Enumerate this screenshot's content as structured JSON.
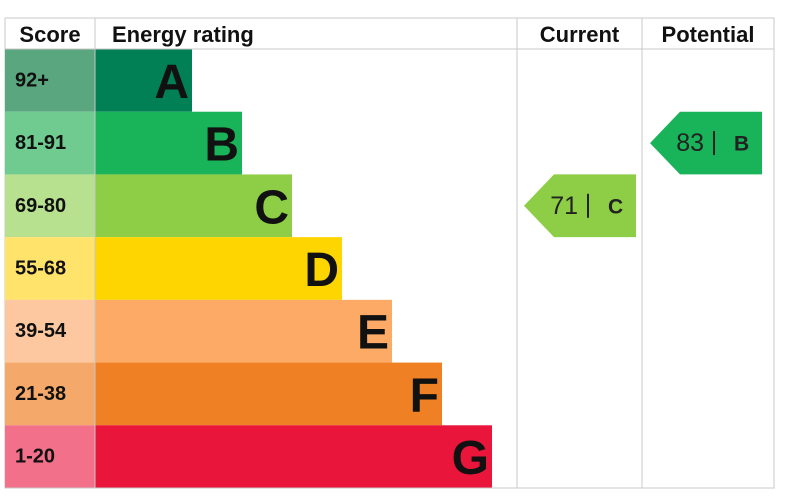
{
  "headers": [
    "Score",
    "Energy rating",
    "Current",
    "Potential"
  ],
  "rows": [
    {
      "score": "92+",
      "rating": "A",
      "color": "#008054",
      "score_color": "#5aa67f"
    },
    {
      "score": "81-91",
      "rating": "B",
      "color": "#19b459",
      "score_color": "#6fcb90"
    },
    {
      "score": "69-80",
      "rating": "C",
      "color": "#8dce46",
      "score_color": "#b7e08f"
    },
    {
      "score": "55-68",
      "rating": "D",
      "color": "#ffd500",
      "score_color": "#ffe36a"
    },
    {
      "score": "39-54",
      "rating": "E",
      "color": "#fcaa65",
      "score_color": "#fdc8a0"
    },
    {
      "score": "21-38",
      "rating": "F",
      "color": "#ef8023",
      "score_color": "#f4a86a"
    },
    {
      "score": "1-20",
      "rating": "G",
      "color": "#e9153b",
      "score_color": "#f27089"
    }
  ],
  "current": {
    "value": 71,
    "rating": "C"
  },
  "potential": {
    "value": 83,
    "rating": "B"
  }
}
